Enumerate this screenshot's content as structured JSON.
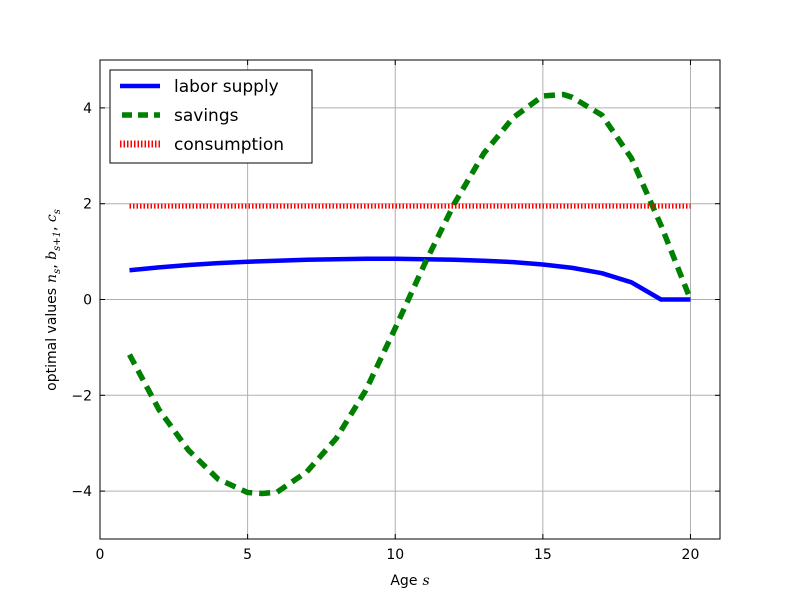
{
  "chart_data": {
    "type": "line",
    "xlabel": "Age",
    "xlabel_math": "s",
    "ylabel": "optimal values",
    "ylabel_math": [
      "n",
      "s",
      "b",
      "s+1",
      "c",
      "s"
    ],
    "xlim": [
      0,
      21
    ],
    "ylim": [
      -5,
      5
    ],
    "xticks": [
      0,
      5,
      10,
      15,
      20
    ],
    "yticks": [
      -4,
      -2,
      0,
      2,
      4
    ],
    "grid": true,
    "legend_position": "top-left",
    "series": [
      {
        "name": "labor supply",
        "style": "solid",
        "color": "#0000ff",
        "x": [
          1,
          2,
          3,
          4,
          5,
          6,
          7,
          8,
          9,
          10,
          11,
          12,
          13,
          14,
          15,
          16,
          17,
          18,
          19,
          20
        ],
        "y": [
          0.61,
          0.67,
          0.72,
          0.76,
          0.79,
          0.81,
          0.83,
          0.84,
          0.85,
          0.85,
          0.84,
          0.83,
          0.81,
          0.78,
          0.73,
          0.66,
          0.55,
          0.36,
          0.0,
          0.0
        ]
      },
      {
        "name": "savings",
        "style": "dashed",
        "color": "#008000",
        "x": [
          1,
          2,
          3,
          4,
          5,
          5.5,
          6,
          7,
          8,
          9,
          10,
          11,
          12,
          13,
          14,
          15,
          15.7,
          16,
          17,
          18,
          19,
          20
        ],
        "y": [
          -1.15,
          -2.3,
          -3.15,
          -3.75,
          -4.03,
          -4.05,
          -4.02,
          -3.6,
          -2.9,
          -1.9,
          -0.6,
          0.75,
          2.0,
          3.05,
          3.8,
          4.25,
          4.28,
          4.22,
          3.85,
          2.95,
          1.55,
          0.0
        ]
      },
      {
        "name": "consumption",
        "style": "dotted",
        "color": "#ff0000",
        "x": [
          1,
          2,
          3,
          4,
          5,
          6,
          7,
          8,
          9,
          10,
          11,
          12,
          13,
          14,
          15,
          16,
          17,
          18,
          19,
          20
        ],
        "y": [
          1.95,
          1.95,
          1.95,
          1.95,
          1.95,
          1.95,
          1.95,
          1.95,
          1.95,
          1.95,
          1.95,
          1.95,
          1.95,
          1.95,
          1.95,
          1.95,
          1.95,
          1.95,
          1.95,
          1.95
        ]
      }
    ]
  }
}
